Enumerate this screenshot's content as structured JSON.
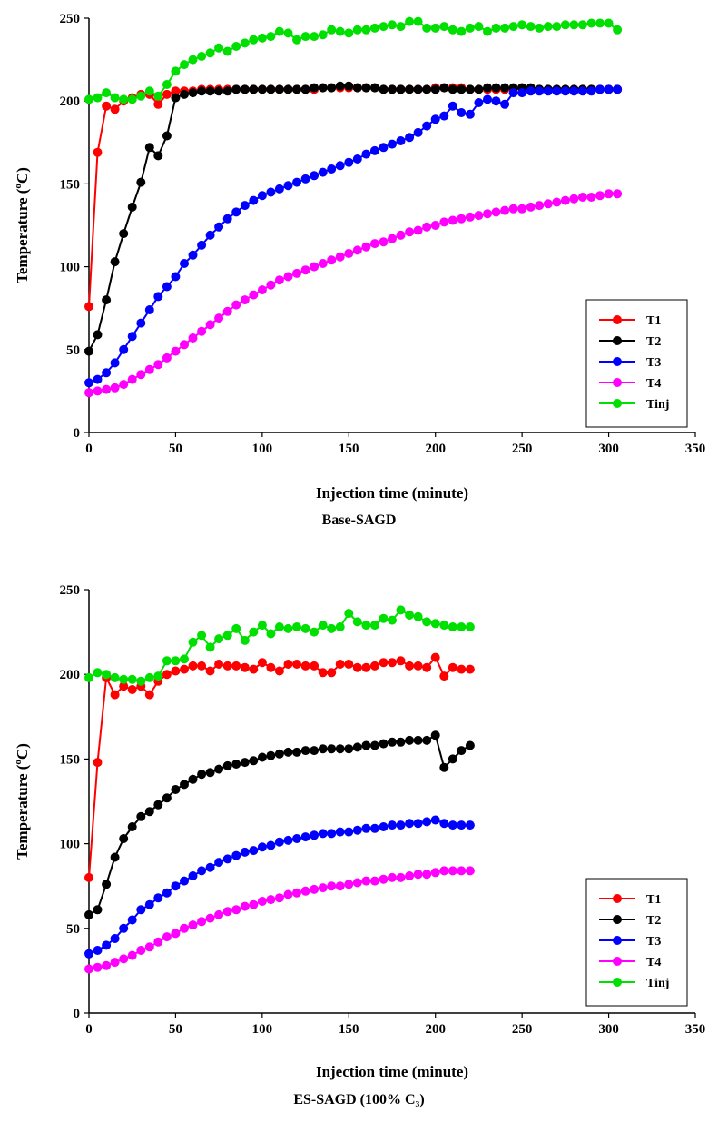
{
  "chart_data": [
    {
      "type": "line",
      "caption": "Base-SAGD",
      "xlabel": "Injection time (minute)",
      "ylabel_main": "Temperature (",
      "ylabel_sup": "o",
      "ylabel_end": "C)",
      "xlim": [
        0,
        350
      ],
      "ylim": [
        0,
        250
      ],
      "xticks": [
        "0",
        "50",
        "100",
        "150",
        "200",
        "250",
        "300",
        "350"
      ],
      "yticks": [
        "0",
        "50",
        "100",
        "150",
        "200",
        "250"
      ],
      "legend_position": "lower-right",
      "x": [
        0,
        5,
        10,
        15,
        20,
        25,
        30,
        35,
        40,
        45,
        50,
        55,
        60,
        65,
        70,
        75,
        80,
        85,
        90,
        95,
        100,
        105,
        110,
        115,
        120,
        125,
        130,
        135,
        140,
        145,
        150,
        155,
        160,
        165,
        170,
        175,
        180,
        185,
        190,
        195,
        200,
        205,
        210,
        215,
        220,
        225,
        230,
        235,
        240,
        245,
        250,
        255,
        260,
        265,
        270,
        275,
        280,
        285,
        290,
        295,
        300,
        305
      ],
      "series": [
        {
          "name": "T1",
          "color": "#ff0000",
          "values": [
            76,
            169,
            197,
            195,
            200,
            202,
            204,
            204,
            198,
            204,
            206,
            206,
            206,
            207,
            207,
            207,
            207,
            207,
            207,
            207,
            207,
            207,
            207,
            207,
            207,
            207,
            207,
            208,
            208,
            208,
            208,
            208,
            208,
            208,
            207,
            207,
            207,
            207,
            207,
            207,
            208,
            208,
            208,
            208,
            207,
            207,
            207,
            207,
            207,
            207,
            208,
            207,
            207,
            207,
            207,
            207,
            207,
            207,
            207,
            207,
            207,
            207
          ]
        },
        {
          "name": "T2",
          "color": "#000000",
          "values": [
            49,
            59,
            80,
            103,
            120,
            136,
            151,
            172,
            167,
            179,
            202,
            204,
            205,
            206,
            206,
            206,
            206,
            207,
            207,
            207,
            207,
            207,
            207,
            207,
            207,
            207,
            208,
            208,
            208,
            209,
            209,
            208,
            208,
            208,
            207,
            207,
            207,
            207,
            207,
            207,
            207,
            208,
            207,
            207,
            207,
            207,
            208,
            208,
            208,
            208,
            208,
            208,
            207,
            207,
            207,
            207,
            207,
            207,
            207,
            207,
            207,
            207
          ]
        },
        {
          "name": "T3",
          "color": "#0000ff",
          "values": [
            30,
            32,
            36,
            42,
            50,
            58,
            66,
            74,
            82,
            88,
            94,
            102,
            107,
            113,
            119,
            124,
            129,
            133,
            137,
            140,
            143,
            145,
            147,
            149,
            151,
            153,
            155,
            157,
            159,
            161,
            163,
            165,
            168,
            170,
            172,
            174,
            176,
            178,
            181,
            185,
            189,
            191,
            197,
            193,
            192,
            199,
            201,
            200,
            198,
            205,
            205,
            206,
            206,
            206,
            206,
            206,
            206,
            206,
            206,
            207,
            207,
            207
          ]
        },
        {
          "name": "T4",
          "color": "#ff00ff",
          "values": [
            24,
            25,
            26,
            27,
            29,
            32,
            35,
            38,
            41,
            45,
            49,
            53,
            57,
            61,
            65,
            69,
            73,
            77,
            80,
            83,
            86,
            89,
            92,
            94,
            96,
            98,
            100,
            102,
            104,
            106,
            108,
            110,
            112,
            114,
            115,
            117,
            119,
            121,
            122,
            124,
            125,
            127,
            128,
            129,
            130,
            131,
            132,
            133,
            134,
            135,
            135,
            136,
            137,
            138,
            139,
            140,
            141,
            142,
            142,
            143,
            144,
            144
          ]
        },
        {
          "name": "Tinj",
          "color": "#00e000",
          "values": [
            201,
            202,
            205,
            202,
            201,
            201,
            203,
            206,
            203,
            210,
            218,
            222,
            225,
            227,
            229,
            232,
            230,
            233,
            235,
            237,
            238,
            239,
            242,
            241,
            237,
            239,
            239,
            240,
            243,
            242,
            241,
            243,
            243,
            244,
            245,
            246,
            245,
            248,
            248,
            244,
            244,
            245,
            243,
            242,
            244,
            245,
            242,
            244,
            244,
            245,
            246,
            245,
            244,
            245,
            245,
            246,
            246,
            246,
            247,
            247,
            247,
            243
          ]
        }
      ]
    },
    {
      "type": "line",
      "caption": "ES-SAGD (100% C₃)",
      "xlabel": "Injection time (minute)",
      "ylabel_main": "Temperature (",
      "ylabel_sup": "o",
      "ylabel_end": "C)",
      "xlim": [
        0,
        350
      ],
      "ylim": [
        0,
        250
      ],
      "xticks": [
        "0",
        "50",
        "100",
        "150",
        "200",
        "250",
        "300",
        "350"
      ],
      "yticks": [
        "0",
        "50",
        "100",
        "150",
        "200",
        "250"
      ],
      "legend_position": "lower-right",
      "x": [
        0,
        5,
        10,
        15,
        20,
        25,
        30,
        35,
        40,
        45,
        50,
        55,
        60,
        65,
        70,
        75,
        80,
        85,
        90,
        95,
        100,
        105,
        110,
        115,
        120,
        125,
        130,
        135,
        140,
        145,
        150,
        155,
        160,
        165,
        170,
        175,
        180,
        185,
        190,
        195,
        200,
        205,
        210,
        215,
        220
      ],
      "series": [
        {
          "name": "T1",
          "color": "#ff0000",
          "values": [
            80,
            148,
            198,
            188,
            193,
            191,
            193,
            188,
            196,
            200,
            202,
            203,
            205,
            205,
            202,
            206,
            205,
            205,
            204,
            203,
            207,
            204,
            202,
            206,
            206,
            205,
            205,
            201,
            201,
            206,
            206,
            204,
            204,
            205,
            207,
            207,
            208,
            205,
            205,
            204,
            210,
            199,
            204,
            203,
            203
          ]
        },
        {
          "name": "T2",
          "color": "#000000",
          "values": [
            58,
            61,
            76,
            92,
            103,
            110,
            116,
            119,
            123,
            127,
            132,
            135,
            138,
            141,
            142,
            144,
            146,
            147,
            148,
            149,
            151,
            152,
            153,
            154,
            154,
            155,
            155,
            156,
            156,
            156,
            156,
            157,
            158,
            158,
            159,
            160,
            160,
            161,
            161,
            161,
            164,
            145,
            150,
            155,
            158
          ]
        },
        {
          "name": "T3",
          "color": "#0000ff",
          "values": [
            35,
            37,
            40,
            44,
            50,
            55,
            61,
            64,
            68,
            71,
            75,
            78,
            81,
            84,
            86,
            89,
            91,
            93,
            95,
            96,
            98,
            99,
            101,
            102,
            103,
            104,
            105,
            106,
            106,
            107,
            107,
            108,
            109,
            109,
            110,
            111,
            111,
            112,
            112,
            113,
            114,
            112,
            111,
            111,
            111
          ]
        },
        {
          "name": "T4",
          "color": "#ff00ff",
          "values": [
            26,
            27,
            28,
            30,
            32,
            34,
            37,
            39,
            42,
            45,
            47,
            50,
            52,
            54,
            56,
            58,
            60,
            61,
            63,
            64,
            66,
            67,
            68,
            70,
            71,
            72,
            73,
            74,
            75,
            75,
            76,
            77,
            78,
            78,
            79,
            80,
            80,
            81,
            82,
            82,
            83,
            84,
            84,
            84,
            84
          ]
        },
        {
          "name": "Tinj",
          "color": "#00e000",
          "values": [
            198,
            201,
            200,
            198,
            197,
            197,
            196,
            198,
            199,
            208,
            208,
            209,
            219,
            223,
            216,
            221,
            223,
            227,
            220,
            225,
            229,
            224,
            228,
            227,
            228,
            227,
            225,
            229,
            227,
            228,
            236,
            231,
            229,
            229,
            233,
            232,
            238,
            235,
            234,
            231,
            230,
            229,
            228,
            228,
            228
          ]
        }
      ]
    }
  ]
}
